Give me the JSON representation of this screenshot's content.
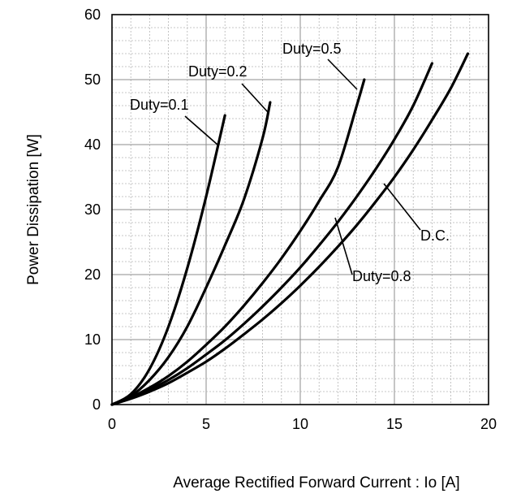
{
  "chart_data": {
    "type": "line",
    "title": "",
    "xlabel": "Average Rectified Forward Current : Io [A]",
    "ylabel": "Power Dissipation [W]",
    "xlim": [
      0,
      20
    ],
    "ylim": [
      0,
      60
    ],
    "x_ticks": [
      0,
      5,
      10,
      15,
      20
    ],
    "y_ticks": [
      0,
      10,
      20,
      30,
      40,
      50,
      60
    ],
    "x_ticks_text": [
      "0",
      "5",
      "10",
      "15",
      "20"
    ],
    "y_ticks_text": [
      "0",
      "10",
      "20",
      "30",
      "40",
      "50",
      "60"
    ],
    "grid": true,
    "series": [
      {
        "name": "Duty=0.1",
        "x": [
          0,
          1,
          2,
          3,
          4,
          5,
          6
        ],
        "y": [
          0,
          1.6,
          5.5,
          12,
          21,
          32,
          44.5
        ]
      },
      {
        "name": "Duty=0.2",
        "x": [
          0,
          1,
          2,
          3,
          4,
          5,
          6,
          7,
          8,
          8.4
        ],
        "y": [
          0,
          1.3,
          3.8,
          7.3,
          12,
          18,
          24.5,
          31.5,
          41,
          46.5
        ]
      },
      {
        "name": "Duty=0.5",
        "x": [
          0,
          1,
          2,
          3,
          4,
          5,
          6,
          7,
          8,
          9,
          10,
          11,
          12,
          13,
          13.4
        ],
        "y": [
          0,
          1.1,
          2.6,
          4.4,
          6.6,
          9.2,
          12,
          15.2,
          18.7,
          22.5,
          26.7,
          31.3,
          36.5,
          46,
          50
        ]
      },
      {
        "name": "Duty=0.8",
        "x": [
          0,
          1,
          2,
          3,
          4,
          5,
          6,
          7,
          8,
          9,
          10,
          11,
          12,
          13,
          14,
          15,
          16,
          17
        ],
        "y": [
          0,
          1,
          2.3,
          3.8,
          5.6,
          7.7,
          9.9,
          12.4,
          15.1,
          18,
          21.1,
          24.5,
          28.1,
          32,
          36.2,
          40.8,
          46,
          52.5
        ]
      },
      {
        "name": "D.C.",
        "x": [
          0,
          1,
          2,
          3,
          4,
          5,
          6,
          7,
          8,
          9,
          10,
          11,
          12,
          13,
          14,
          15,
          16,
          17,
          18,
          18.9
        ],
        "y": [
          0,
          0.9,
          2,
          3.3,
          4.9,
          6.6,
          8.6,
          10.8,
          13.1,
          15.6,
          18.3,
          21.2,
          24.3,
          27.6,
          31.2,
          35,
          39.2,
          43.8,
          48.7,
          54
        ]
      }
    ],
    "annotations": [
      {
        "text": "Duty=0.1",
        "series": "Duty=0.1"
      },
      {
        "text": "Duty=0.2",
        "series": "Duty=0.2"
      },
      {
        "text": "Duty=0.5",
        "series": "Duty=0.5"
      },
      {
        "text": "Duty=0.8",
        "series": "Duty=0.8"
      },
      {
        "text": "D.C.",
        "series": "D.C."
      }
    ]
  }
}
